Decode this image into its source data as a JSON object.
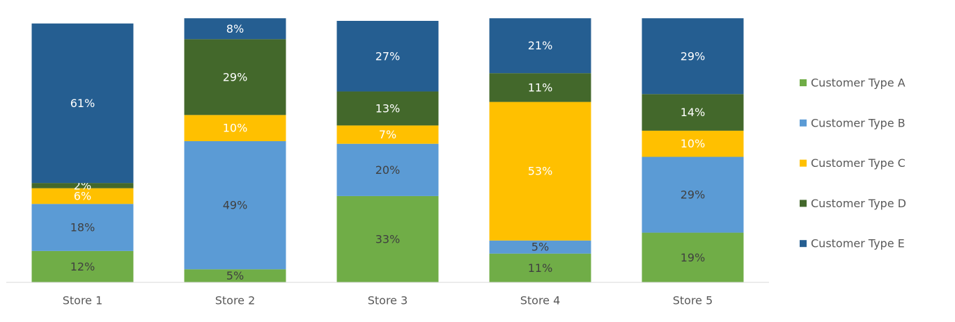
{
  "chart_data": {
    "type": "stacked_bar",
    "categories": [
      "Store 1",
      "Store 2",
      "Store 3",
      "Store 4",
      "Store 5"
    ],
    "ylim": [
      0,
      100
    ],
    "series": [
      {
        "name": "Customer Type A",
        "color": "#70ad47",
        "label_color": "#404040",
        "values": [
          12,
          5,
          33,
          11,
          19
        ],
        "value_labels": [
          "12%",
          "5%",
          "33%",
          "11%",
          "19%"
        ]
      },
      {
        "name": "Customer Type B",
        "color": "#5b9bd5",
        "label_color": "#404040",
        "values": [
          18,
          49,
          20,
          5,
          29
        ],
        "value_labels": [
          "18%",
          "49%",
          "20%",
          "5%",
          "29%"
        ]
      },
      {
        "name": "Customer Type C",
        "color": "#ffc000",
        "label_color": "#ffffff",
        "values": [
          6,
          10,
          7,
          53,
          10
        ],
        "value_labels": [
          "6%",
          "10%",
          "7%",
          "53%",
          "10%"
        ]
      },
      {
        "name": "Customer Type D",
        "color": "#43682b",
        "label_color": "#ffffff",
        "values": [
          2,
          29,
          13,
          11,
          14
        ],
        "value_labels": [
          "2%",
          "29%",
          "13%",
          "11%",
          "14%"
        ]
      },
      {
        "name": "Customer Type E",
        "color": "#255e91",
        "label_color": "#ffffff",
        "values": [
          61,
          8,
          27,
          21,
          29
        ],
        "value_labels": [
          "61%",
          "8%",
          "27%",
          "21%",
          "29%"
        ]
      }
    ],
    "legend": "right"
  }
}
